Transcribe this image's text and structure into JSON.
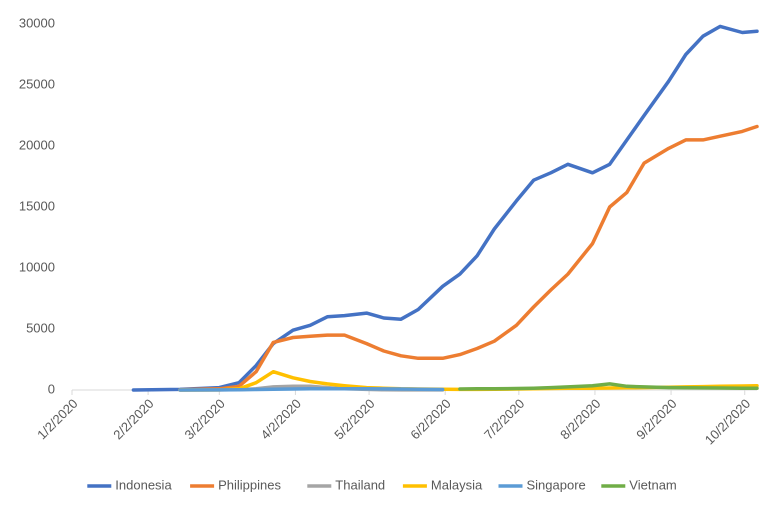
{
  "chart_data": {
    "type": "line",
    "x": [
      "1/27/2020",
      "2/15/2020",
      "3/2/2020",
      "3/10/2020",
      "3/17/2020",
      "3/24/2020",
      "4/1/2020",
      "4/8/2020",
      "4/15/2020",
      "4/22/2020",
      "5/1/2020",
      "5/8/2020",
      "5/15/2020",
      "5/22/2020",
      "6/1/2020",
      "6/8/2020",
      "6/15/2020",
      "6/22/2020",
      "7/1/2020",
      "7/8/2020",
      "7/15/2020",
      "7/22/2020",
      "8/1/2020",
      "8/8/2020",
      "8/15/2020",
      "8/22/2020",
      "9/1/2020",
      "9/8/2020",
      "9/15/2020",
      "9/22/2020",
      "10/1/2020",
      "10/7/2020"
    ],
    "series": [
      {
        "name": "Indonesia",
        "color": "#4472c4",
        "values": [
          0,
          50,
          200,
          600,
          2000,
          3800,
          4900,
          5300,
          6000,
          6100,
          6300,
          5900,
          5800,
          6600,
          8500,
          9500,
          11000,
          13200,
          15500,
          17200,
          17800,
          18500,
          17800,
          18500,
          20500,
          22500,
          25300,
          27500,
          29000,
          29800,
          29300,
          29400
        ]
      },
      {
        "name": "Philippines",
        "color": "#ed7d31",
        "values": [
          null,
          20,
          100,
          300,
          1500,
          3900,
          4300,
          4400,
          4500,
          4500,
          3800,
          3200,
          2800,
          2600,
          2600,
          2900,
          3400,
          4000,
          5300,
          6800,
          8200,
          9500,
          12000,
          15000,
          16200,
          18600,
          19800,
          20500,
          20500,
          20800,
          21200,
          21600
        ]
      },
      {
        "name": "Thailand",
        "color": "#a5a5a5",
        "values": [
          null,
          0,
          10,
          30,
          100,
          250,
          300,
          300,
          200,
          100,
          50,
          20,
          10,
          5,
          5,
          null,
          null,
          null,
          null,
          null,
          null,
          null,
          null,
          null,
          null,
          null,
          null,
          null,
          null,
          null,
          null,
          null
        ]
      },
      {
        "name": "Malaysia",
        "color": "#ffc000",
        "values": [
          null,
          0,
          10,
          100,
          600,
          1500,
          1000,
          700,
          500,
          350,
          200,
          150,
          100,
          80,
          60,
          50,
          50,
          60,
          80,
          100,
          120,
          150,
          150,
          160,
          180,
          200,
          220,
          250,
          280,
          300,
          330,
          350
        ]
      },
      {
        "name": "Singapore",
        "color": "#5b9bd5",
        "values": [
          null,
          0,
          10,
          20,
          40,
          60,
          80,
          100,
          100,
          100,
          100,
          90,
          80,
          60,
          40,
          null,
          null,
          null,
          null,
          null,
          null,
          null,
          null,
          null,
          null,
          null,
          null,
          null,
          null,
          null,
          null,
          null
        ]
      },
      {
        "name": "Vietnam",
        "color": "#70ad47",
        "values": [
          null,
          null,
          null,
          null,
          null,
          null,
          null,
          null,
          null,
          null,
          null,
          null,
          null,
          null,
          null,
          80,
          100,
          100,
          120,
          150,
          200,
          250,
          350,
          500,
          300,
          250,
          200,
          180,
          170,
          160,
          150,
          150
        ]
      }
    ],
    "xlim": [
      "1/2/2020",
      "10/7/2020"
    ],
    "xticks": [
      "1/2/2020",
      "2/2/2020",
      "3/2/2020",
      "4/2/2020",
      "5/2/2020",
      "6/2/2020",
      "7/2/2020",
      "8/2/2020",
      "9/2/2020",
      "10/2/2020"
    ],
    "ylim": [
      0,
      30000
    ],
    "yticks": [
      0,
      5000,
      10000,
      15000,
      20000,
      25000,
      30000
    ],
    "grid": false,
    "legend": "bottom"
  }
}
